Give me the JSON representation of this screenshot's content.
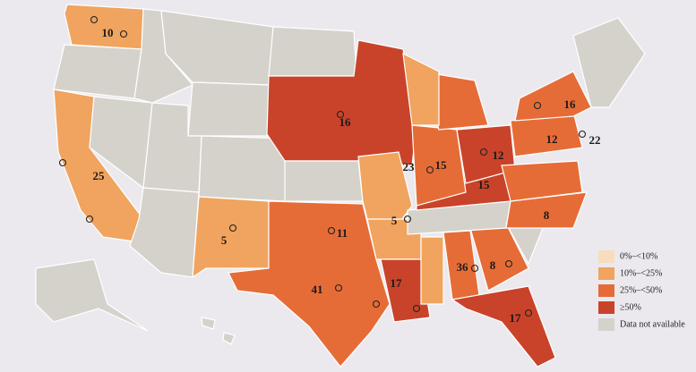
{
  "map_labels": [
    10,
    25,
    16,
    5,
    11,
    41,
    17,
    5,
    23,
    15,
    12,
    12,
    16,
    22,
    15,
    8,
    36,
    8,
    17
  ],
  "legend": {
    "items": [
      "0%–<10%",
      "10%–<25%",
      "25%–<50%",
      "≥50%",
      "Data not available"
    ]
  }
}
